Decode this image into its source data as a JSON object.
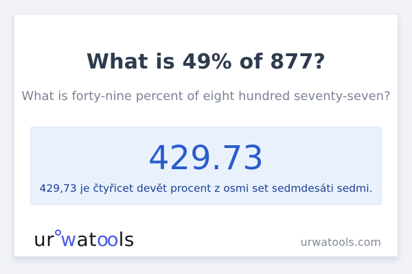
{
  "header": {
    "title": "What is 49% of 877?",
    "subtitle": "What is forty-nine percent of eight hundred seventy-seven?"
  },
  "result": {
    "value": "429.73",
    "sentence": "429,73 je čtyřicet devět procent z osmi set sedmdesáti sedmi."
  },
  "footer": {
    "logo": {
      "seg1": "ur",
      "seg2": "w",
      "seg3": "at",
      "seg4": "oo",
      "seg5": "ls"
    },
    "site_url": "urwatools.com"
  },
  "colors": {
    "page_bg": "#f1f3f8",
    "card_bg": "#ffffff",
    "heading_text": "#2f3b4e",
    "subtitle_text": "#7b8494",
    "result_box_bg": "#e9f2fc",
    "result_box_border": "#d9e7f7",
    "result_value_blue": "#2a5ccc",
    "result_sentence_blue": "#1d3f96",
    "logo_blue": "#4b5be4",
    "logo_black": "#15171c",
    "site_url_gray": "#81899a"
  }
}
